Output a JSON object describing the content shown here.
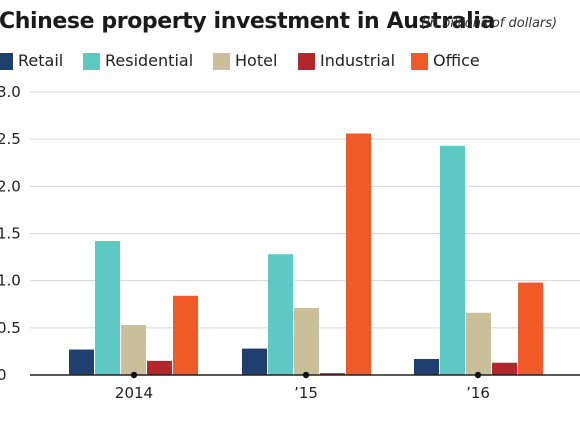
{
  "chart_data": {
    "type": "bar",
    "title": "Chinese property investment in Australia",
    "subtitle": "(in billions of dollars)",
    "categories": [
      "2014",
      "’15",
      "’16"
    ],
    "series": [
      {
        "name": "Retail",
        "color": "#1f3f6e",
        "values": [
          0.27,
          0.28,
          0.17
        ]
      },
      {
        "name": "Residential",
        "color": "#5ec8c2",
        "values": [
          1.42,
          1.28,
          2.43
        ]
      },
      {
        "name": "Hotel",
        "color": "#c9bf9b",
        "values": [
          0.53,
          0.71,
          0.66
        ]
      },
      {
        "name": "Industrial",
        "color": "#b3262c",
        "values": [
          0.15,
          0.02,
          0.13
        ]
      },
      {
        "name": "Office",
        "color": "#ef5a28",
        "values": [
          0.84,
          2.56,
          0.98
        ]
      }
    ],
    "yticks": [
      "0",
      "0.5",
      "1.0",
      "1.5",
      "2.0",
      "2.5",
      "3.0"
    ],
    "ylim": [
      0,
      3.0
    ],
    "xlabel": "",
    "ylabel": "",
    "grid": true,
    "legend_position": "top"
  }
}
